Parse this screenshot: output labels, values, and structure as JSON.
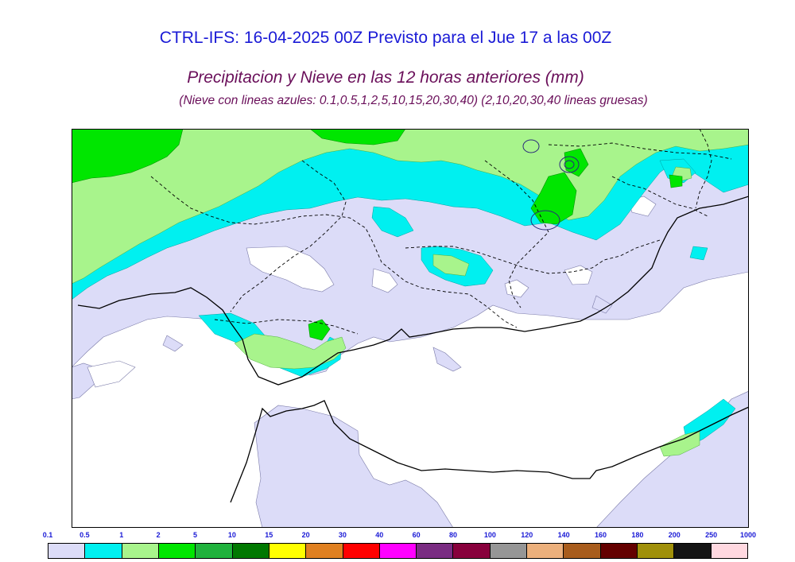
{
  "header": {
    "title": "CTRL-IFS: 16-04-2025 00Z Previsto para el Jue 17 a las 00Z",
    "subtitle": "Precipitacion y Nieve en las 12 horas anteriores (mm)",
    "snow_note": "(Nieve con lineas azules: 0.1,0.5,1,2,5,10,15,20,30,40)  (2,10,20,30,40 lineas gruesas)"
  },
  "legend": {
    "labels": [
      "0.1",
      "0.5",
      "1",
      "2",
      "5",
      "10",
      "15",
      "20",
      "30",
      "40",
      "60",
      "80",
      "100",
      "120",
      "140",
      "160",
      "180",
      "200",
      "250",
      "1000"
    ],
    "colors": [
      "#dcdcf8",
      "#00f0f0",
      "#a8f48c",
      "#00e600",
      "#20b23c",
      "#007800",
      "#ffff00",
      "#e08020",
      "#ff0000",
      "#ff00ff",
      "#7a2c82",
      "#88003c",
      "#969696",
      "#ecb07c",
      "#a85c1c",
      "#640000",
      "#a0900a",
      "#141414",
      "#ffd8e0"
    ]
  },
  "palette": {
    "light_lavender": "#dcdcf8",
    "cyan": "#00f0f0",
    "light_green": "#a8f48c",
    "green": "#00e600",
    "border_line": "#000000"
  }
}
